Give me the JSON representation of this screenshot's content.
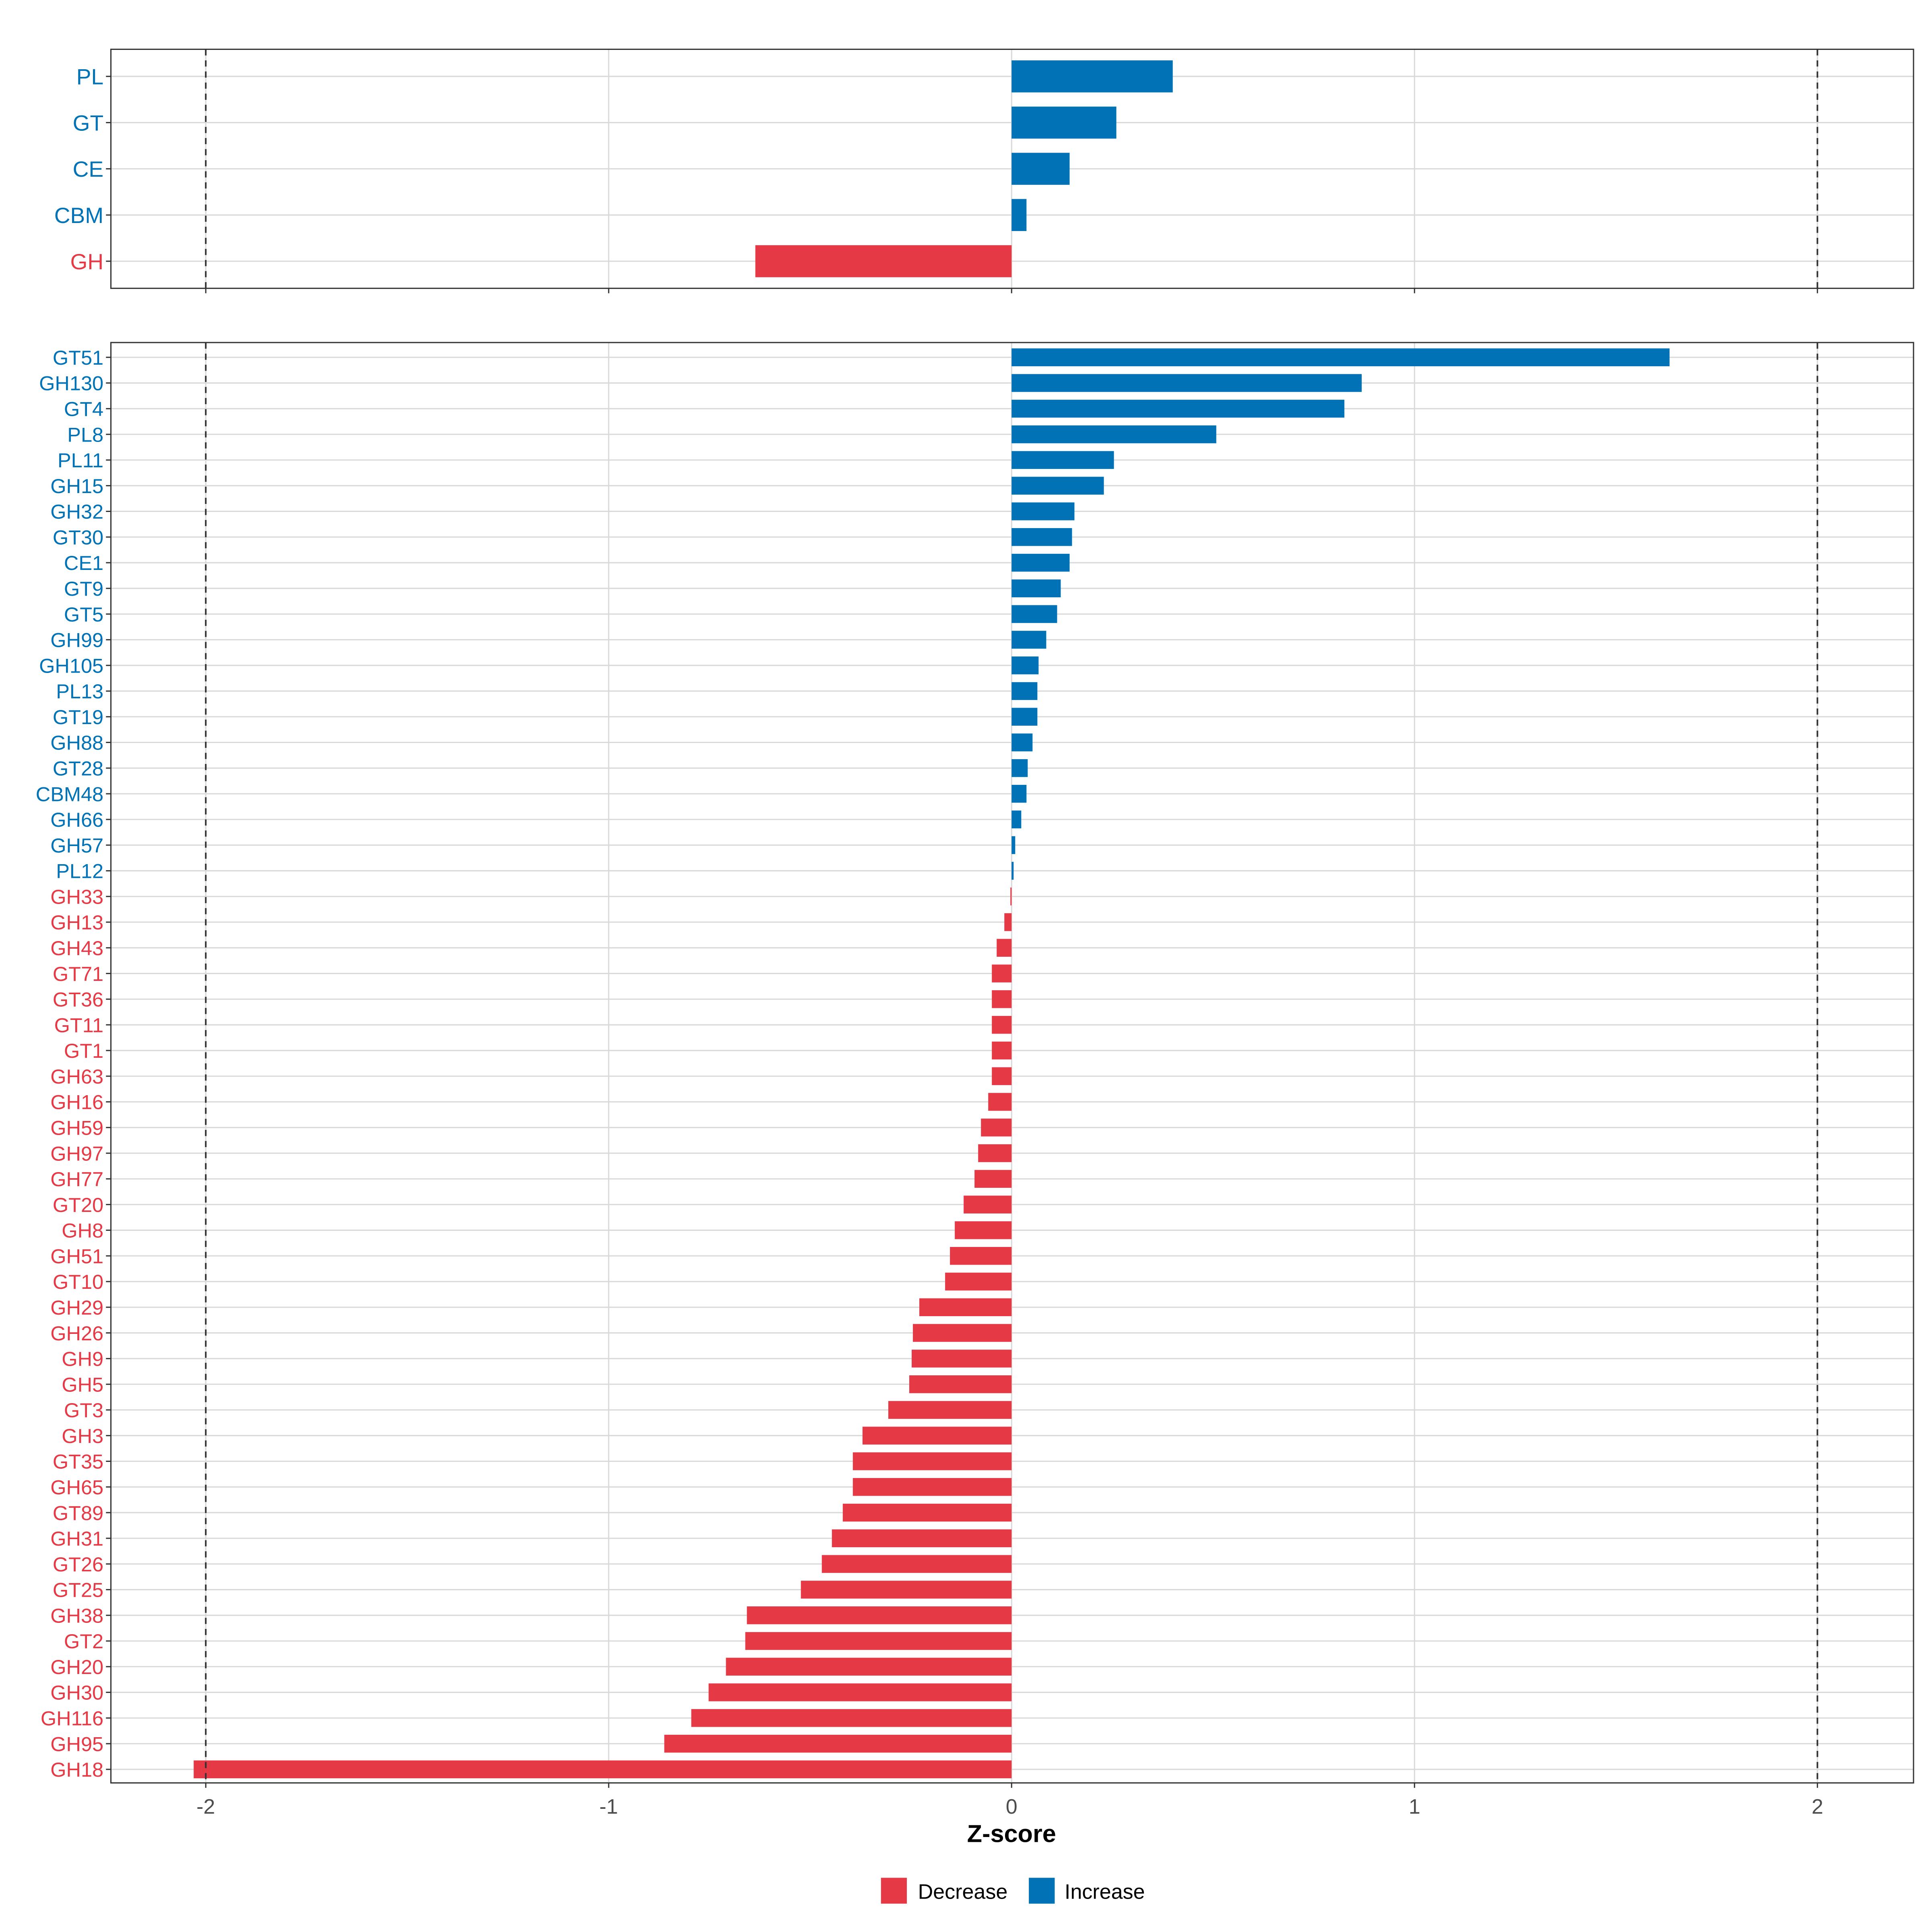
{
  "chart_data": [
    {
      "type": "bar",
      "orientation": "horizontal",
      "panel": "top",
      "categories": [
        "PL",
        "GT",
        "CE",
        "CBM",
        "GH"
      ],
      "values": [
        0.4,
        0.26,
        0.144,
        0.037,
        -0.636
      ],
      "xlim": [
        -2.23,
        2.23
      ],
      "reference_lines": [
        -2,
        2
      ]
    },
    {
      "type": "bar",
      "orientation": "horizontal",
      "panel": "bottom",
      "categories": [
        "GT51",
        "GH130",
        "GT4",
        "PL8",
        "PL11",
        "GH15",
        "GH32",
        "GT30",
        "CE1",
        "GT9",
        "GT5",
        "GH99",
        "GH105",
        "PL13",
        "GT19",
        "GH88",
        "GT28",
        "CBM48",
        "GH66",
        "GH57",
        "PL12",
        "GH33",
        "GH13",
        "GH43",
        "GT71",
        "GT36",
        "GT11",
        "GT1",
        "GH63",
        "GH16",
        "GH59",
        "GH97",
        "GH77",
        "GT20",
        "GH8",
        "GH51",
        "GT10",
        "GH29",
        "GH26",
        "GH9",
        "GH5",
        "GT3",
        "GH3",
        "GT35",
        "GH65",
        "GT89",
        "GH31",
        "GT26",
        "GT25",
        "GH38",
        "GT2",
        "GH20",
        "GH30",
        "GH116",
        "GH95",
        "GH18"
      ],
      "values": [
        1.633,
        0.869,
        0.826,
        0.508,
        0.254,
        0.229,
        0.156,
        0.15,
        0.144,
        0.122,
        0.113,
        0.086,
        0.067,
        0.064,
        0.064,
        0.052,
        0.04,
        0.037,
        0.024,
        0.009,
        0.005,
        -0.003,
        -0.018,
        -0.037,
        -0.049,
        -0.049,
        -0.049,
        -0.049,
        -0.049,
        -0.058,
        -0.076,
        -0.083,
        -0.092,
        -0.119,
        -0.141,
        -0.153,
        -0.165,
        -0.229,
        -0.245,
        -0.248,
        -0.254,
        -0.306,
        -0.37,
        -0.394,
        -0.394,
        -0.419,
        -0.446,
        -0.471,
        -0.523,
        -0.657,
        -0.661,
        -0.709,
        -0.752,
        -0.795,
        -0.862,
        -2.03
      ],
      "xlim": [
        -2.23,
        2.23
      ],
      "reference_lines": [
        -2,
        2
      ]
    }
  ],
  "axis": {
    "xlabel": "Z-score",
    "ticks": [
      -2,
      -1,
      0,
      1,
      2
    ],
    "tick_labels": [
      "-2",
      "-1",
      "0",
      "1",
      "2"
    ]
  },
  "legend": {
    "placement": "bottom",
    "items": [
      {
        "label": "Decrease",
        "color": "#E63946"
      },
      {
        "label": "Increase",
        "color": "#0072B5"
      }
    ]
  },
  "colors": {
    "increase": "#0072B5",
    "decrease": "#E63946",
    "grid": "#D9D9D9",
    "refline": "#333333"
  }
}
